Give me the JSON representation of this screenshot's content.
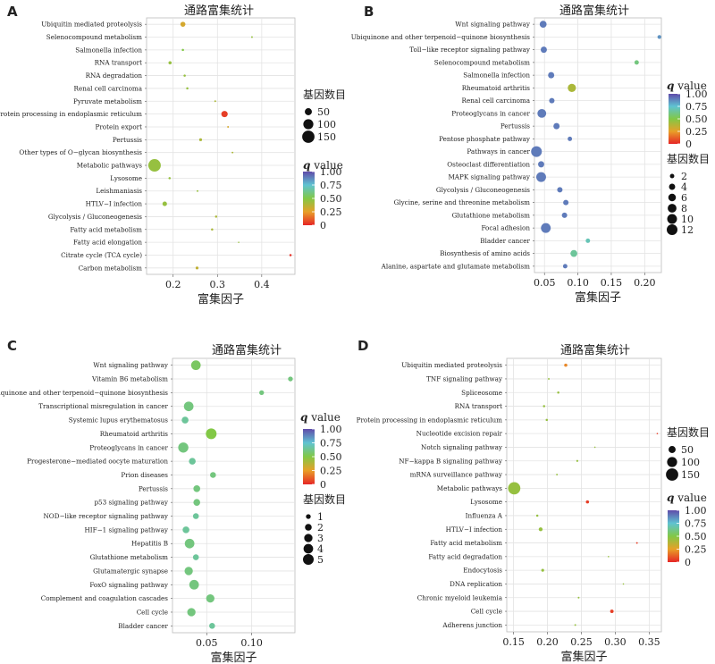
{
  "chart_data": [
    {
      "panel_letter": "A",
      "type": "scatter",
      "title": "通路富集统计",
      "xlabel": "富集因子",
      "xlim": [
        0.14,
        0.475
      ],
      "xticks": [
        0.2,
        0.3,
        0.4
      ],
      "tick_labels": [
        "0.2",
        "0.3",
        "0.4"
      ],
      "categories": [
        "Ubiquitin mediated proteolysis",
        "Selenocompound metabolism",
        "Salmonella infection",
        "RNA transport",
        "RNA degradation",
        "Renal cell carcinoma",
        "Pyruvate metabolism",
        "Protein processing in endoplasmic reticulum",
        "Protein export",
        "Pertussis",
        "Other types of O−glycan biosynthesis",
        "Metabolic pathways",
        "Lysosome",
        "Leishmaniasis",
        "HTLV−I infection",
        "Glycolysis / Gluconeogenesis",
        "Fatty acid metabolism",
        "Fatty acid elongation",
        "Citrate cycle (TCA cycle)",
        "Carbon metabolism"
      ],
      "points": [
        {
          "x": 0.222,
          "q": 0.3,
          "count": 25
        },
        {
          "x": 0.378,
          "q": 0.45,
          "count": 3
        },
        {
          "x": 0.222,
          "q": 0.5,
          "count": 5
        },
        {
          "x": 0.193,
          "q": 0.45,
          "count": 10
        },
        {
          "x": 0.226,
          "q": 0.45,
          "count": 5
        },
        {
          "x": 0.232,
          "q": 0.45,
          "count": 5
        },
        {
          "x": 0.295,
          "q": 0.4,
          "count": 3
        },
        {
          "x": 0.316,
          "q": 0.05,
          "count": 40
        },
        {
          "x": 0.324,
          "q": 0.3,
          "count": 3
        },
        {
          "x": 0.262,
          "q": 0.4,
          "count": 8
        },
        {
          "x": 0.334,
          "q": 0.4,
          "count": 3
        },
        {
          "x": 0.158,
          "q": 0.45,
          "count": 155
        },
        {
          "x": 0.192,
          "q": 0.45,
          "count": 5
        },
        {
          "x": 0.255,
          "q": 0.45,
          "count": 3
        },
        {
          "x": 0.181,
          "q": 0.45,
          "count": 20
        },
        {
          "x": 0.297,
          "q": 0.4,
          "count": 5
        },
        {
          "x": 0.288,
          "q": 0.4,
          "count": 5
        },
        {
          "x": 0.348,
          "q": 0.45,
          "count": 2
        },
        {
          "x": 0.465,
          "q": 0.02,
          "count": 5
        },
        {
          "x": 0.254,
          "q": 0.35,
          "count": 8
        }
      ],
      "size_legend": {
        "title": "基因数目",
        "values": [
          50,
          100,
          150
        ],
        "max": 155
      },
      "color_legend": {
        "title_italic": "q",
        "title_rest": " value",
        "ticks": [
          "1.00",
          "0.75",
          "0.50",
          "0.25",
          "0"
        ]
      }
    },
    {
      "panel_letter": "B",
      "type": "scatter",
      "title": "通路富集统计",
      "xlabel": "富集因子",
      "xlim": [
        0.035,
        0.225
      ],
      "xticks": [
        0.05,
        0.1,
        0.15,
        0.2
      ],
      "tick_labels": [
        "0.05",
        "0.10",
        "0.15",
        "0.20"
      ],
      "categories": [
        "Wnt signaling pathway",
        "Ubiquinone and other terpenoid−quinone biosynthesis",
        "Toll−like receptor signaling pathway",
        "Selenocompound metabolism",
        "Salmonella infection",
        "Rheumatoid arthritis",
        "Renal cell carcinoma",
        "Proteoglycans in cancer",
        "Pertussis",
        "Pentose phosphate pathway",
        "Pathways in cancer",
        "Osteoclast differentiation",
        "MAPK signaling pathway",
        "Glycolysis / Gluconeogenesis",
        "Glycine, serine and threonine metabolism",
        "Glutathione metabolism",
        "Focal adhesion",
        "Bladder cancer",
        "Biosynthesis of amino acids",
        "Alanine, aspartate and glutamate metabolism"
      ],
      "points": [
        {
          "x": 0.048,
          "q": 0.9,
          "count": 5
        },
        {
          "x": 0.222,
          "q": 0.85,
          "count": 1.5
        },
        {
          "x": 0.049,
          "q": 0.9,
          "count": 4
        },
        {
          "x": 0.188,
          "q": 0.6,
          "count": 2
        },
        {
          "x": 0.06,
          "q": 0.9,
          "count": 4
        },
        {
          "x": 0.091,
          "q": 0.4,
          "count": 7
        },
        {
          "x": 0.061,
          "q": 0.9,
          "count": 3
        },
        {
          "x": 0.046,
          "q": 0.9,
          "count": 8
        },
        {
          "x": 0.068,
          "q": 0.9,
          "count": 4
        },
        {
          "x": 0.088,
          "q": 0.9,
          "count": 2
        },
        {
          "x": 0.038,
          "q": 0.9,
          "count": 12
        },
        {
          "x": 0.045,
          "q": 0.9,
          "count": 4
        },
        {
          "x": 0.045,
          "q": 0.9,
          "count": 10
        },
        {
          "x": 0.073,
          "q": 0.9,
          "count": 3
        },
        {
          "x": 0.082,
          "q": 0.9,
          "count": 3
        },
        {
          "x": 0.08,
          "q": 0.9,
          "count": 3
        },
        {
          "x": 0.052,
          "q": 0.9,
          "count": 10
        },
        {
          "x": 0.115,
          "q": 0.7,
          "count": 2
        },
        {
          "x": 0.094,
          "q": 0.65,
          "count": 5
        },
        {
          "x": 0.081,
          "q": 0.9,
          "count": 2
        }
      ],
      "size_legend": {
        "title": "基因数目",
        "values": [
          2,
          4,
          6,
          8,
          10,
          12
        ],
        "max": 12
      },
      "color_legend": {
        "title_italic": "q",
        "title_rest": " value",
        "ticks": [
          "1.00",
          "0.75",
          "0.50",
          "0.25",
          "0"
        ]
      }
    },
    {
      "panel_letter": "C",
      "type": "scatter",
      "title": "通路富集统计",
      "xlabel": "富集因子",
      "xlim": [
        0.012,
        0.148
      ],
      "xticks": [
        0.05,
        0.1
      ],
      "tick_labels": [
        "0.05",
        "0.10"
      ],
      "categories": [
        "Wnt signaling pathway",
        "Vitamin B6 metabolism",
        "Ubiquinone and other terpenoid−quinone biosynthesis",
        "Transcriptional misregulation in cancer",
        "Systemic lupus erythematosus",
        "Rheumatoid arthritis",
        "Proteoglycans in cancer",
        "Progesterone−mediated oocyte maturation",
        "Prion diseases",
        "Pertussis",
        "p53 signaling pathway",
        "NOD−like receptor signaling pathway",
        "HIF−1 signaling pathway",
        "Hepatitis B",
        "Glutathione metabolism",
        "Glutamatergic synapse",
        "FoxO signaling pathway",
        "Complement and coagulation cascades",
        "Cell cycle",
        "Bladder cancer"
      ],
      "points": [
        {
          "x": 0.038,
          "q": 0.55,
          "count": 4
        },
        {
          "x": 0.143,
          "q": 0.6,
          "count": 1
        },
        {
          "x": 0.111,
          "q": 0.6,
          "count": 1
        },
        {
          "x": 0.03,
          "q": 0.6,
          "count": 4
        },
        {
          "x": 0.026,
          "q": 0.65,
          "count": 2
        },
        {
          "x": 0.055,
          "q": 0.5,
          "count": 5
        },
        {
          "x": 0.024,
          "q": 0.6,
          "count": 4.5
        },
        {
          "x": 0.034,
          "q": 0.65,
          "count": 2
        },
        {
          "x": 0.057,
          "q": 0.6,
          "count": 1.5
        },
        {
          "x": 0.039,
          "q": 0.6,
          "count": 2
        },
        {
          "x": 0.039,
          "q": 0.6,
          "count": 2
        },
        {
          "x": 0.038,
          "q": 0.65,
          "count": 1.5
        },
        {
          "x": 0.027,
          "q": 0.65,
          "count": 2
        },
        {
          "x": 0.031,
          "q": 0.6,
          "count": 4
        },
        {
          "x": 0.038,
          "q": 0.65,
          "count": 1.5
        },
        {
          "x": 0.03,
          "q": 0.6,
          "count": 3
        },
        {
          "x": 0.036,
          "q": 0.6,
          "count": 4
        },
        {
          "x": 0.054,
          "q": 0.6,
          "count": 3
        },
        {
          "x": 0.033,
          "q": 0.6,
          "count": 3
        },
        {
          "x": 0.056,
          "q": 0.65,
          "count": 1.5
        }
      ],
      "size_legend": {
        "title": "基因数目",
        "values": [
          1,
          2,
          3,
          4,
          5
        ],
        "max": 5
      },
      "color_legend": {
        "title_italic": "q",
        "title_rest": " value",
        "ticks": [
          "1.00",
          "0.75",
          "0.50",
          "0.25",
          "0"
        ]
      }
    },
    {
      "panel_letter": "D",
      "type": "scatter",
      "title": "通路富集统计",
      "xlabel": "富集因子",
      "xlim": [
        0.14,
        0.368
      ],
      "xticks": [
        0.15,
        0.2,
        0.25,
        0.3,
        0.35
      ],
      "tick_labels": [
        "0.15",
        "0.20",
        "0.25",
        "0.30",
        "0.35"
      ],
      "categories": [
        "Ubiquitin mediated proteolysis",
        "TNF signaling pathway",
        "Spliceosome",
        "RNA transport",
        "Protein processing in endoplasmic reticulum",
        "Nucleotide excision repair",
        "Notch signaling pathway",
        "NF−kappa B signaling pathway",
        "mRNA surveillance pathway",
        "Metabolic pathways",
        "Lysosome",
        "Influenza A",
        "HTLV−I infection",
        "Fatty acid metabolism",
        "Fatty acid degradation",
        "Endocytosis",
        "DNA replication",
        "Chronic myeloid leukemia",
        "Cell cycle",
        "Adherens junction"
      ],
      "points": [
        {
          "x": 0.227,
          "q": 0.2,
          "count": 10
        },
        {
          "x": 0.202,
          "q": 0.45,
          "count": 3
        },
        {
          "x": 0.216,
          "q": 0.45,
          "count": 5
        },
        {
          "x": 0.195,
          "q": 0.45,
          "count": 5
        },
        {
          "x": 0.199,
          "q": 0.45,
          "count": 5
        },
        {
          "x": 0.362,
          "q": 0.05,
          "count": 2
        },
        {
          "x": 0.27,
          "q": 0.45,
          "count": 2
        },
        {
          "x": 0.244,
          "q": 0.45,
          "count": 4
        },
        {
          "x": 0.214,
          "q": 0.45,
          "count": 3
        },
        {
          "x": 0.151,
          "q": 0.45,
          "count": 150
        },
        {
          "x": 0.259,
          "q": 0.05,
          "count": 10
        },
        {
          "x": 0.185,
          "q": 0.45,
          "count": 5
        },
        {
          "x": 0.19,
          "q": 0.45,
          "count": 15
        },
        {
          "x": 0.332,
          "q": 0.05,
          "count": 3
        },
        {
          "x": 0.29,
          "q": 0.45,
          "count": 2
        },
        {
          "x": 0.193,
          "q": 0.45,
          "count": 8
        },
        {
          "x": 0.312,
          "q": 0.45,
          "count": 1.5
        },
        {
          "x": 0.246,
          "q": 0.45,
          "count": 3
        },
        {
          "x": 0.295,
          "q": 0.05,
          "count": 12
        },
        {
          "x": 0.241,
          "q": 0.45,
          "count": 3
        }
      ],
      "size_legend": {
        "title": "基因数目",
        "values": [
          50,
          100,
          150
        ],
        "max": 155
      },
      "color_legend": {
        "title_italic": "q",
        "title_rest": " value",
        "ticks": [
          "1.00",
          "0.75",
          "0.50",
          "0.25",
          "0"
        ]
      }
    }
  ]
}
